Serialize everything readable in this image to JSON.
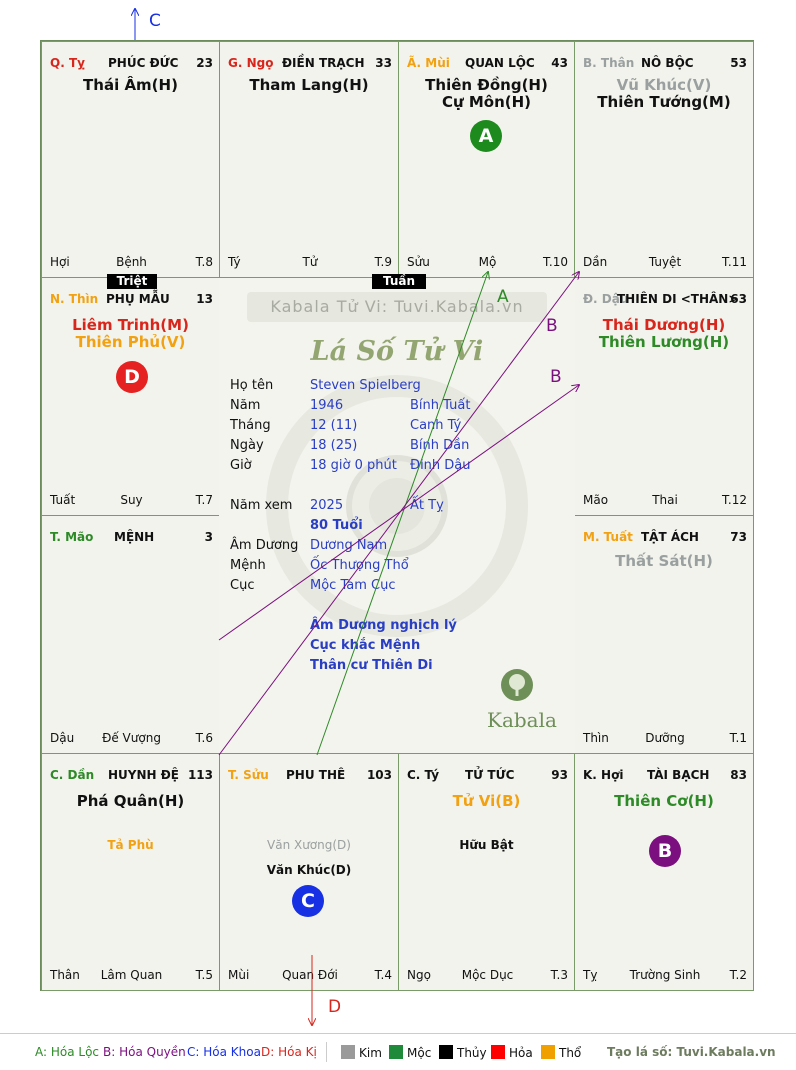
{
  "colors": {
    "green": "#2d8a27",
    "red": "#d8261d",
    "purple": "#7b0f7f",
    "blue": "#1730e3",
    "orange": "#f2a112",
    "gray": "#9aa0a0",
    "kim": "#9a9a9a",
    "moc": "#1f8a3a",
    "thuy": "#000000",
    "hoa": "#ff0000",
    "tho": "#f0a000"
  },
  "cells": {
    "ty": {
      "branch": "Q. Tỵ",
      "name": "PHÚC ĐỨC",
      "age": "23",
      "star1": "Thái Âm(H)",
      "b1": "Hợi",
      "b2": "Bệnh",
      "b3": "T.8"
    },
    "ngo": {
      "branch": "G. Ngọ",
      "name": "ĐIỀN TRẠCH",
      "age": "33",
      "star1": "Tham Lang(H)",
      "b1": "Tý",
      "b2": "Tử",
      "b3": "T.9"
    },
    "mui": {
      "branch": "Ã. Mùi",
      "name": "QUAN LỘC",
      "age": "43",
      "star1": "Thiên Đồng(H)",
      "star2": "Cự Môn(H)",
      "b1": "Sửu",
      "b2": "Mộ",
      "b3": "T.10",
      "circle": "A"
    },
    "than": {
      "branch": "B. Thân",
      "name": "NÔ BỘC",
      "age": "53",
      "star1": "Vũ Khúc(V)",
      "star2": "Thiên Tướng(M)",
      "b1": "Dần",
      "b2": "Tuyệt",
      "b3": "T.11"
    },
    "thin": {
      "branch": "N. Thìn",
      "name": "PHỤ MẪU",
      "age": "13",
      "star1": "Liêm Trinh(M)",
      "star2": "Thiên Phủ(V)",
      "b1": "Tuất",
      "b2": "Suy",
      "b3": "T.7",
      "circle": "D"
    },
    "dau": {
      "branch": "Đ. Dậu",
      "name": "THIÊN DI <THÂN>",
      "age": "63",
      "star1": "Thái Dương(H)",
      "star2": "Thiên Lương(H)",
      "b1": "Mão",
      "b2": "Thai",
      "b3": "T.12"
    },
    "mao": {
      "branch": "T. Mão",
      "name": "MỆNH",
      "age": "3",
      "b1": "Dậu",
      "b2": "Đế Vượng",
      "b3": "T.6"
    },
    "tuat": {
      "branch": "M. Tuất",
      "name": "TẬT ÁCH",
      "age": "73",
      "star1": "Thất Sát(H)",
      "b1": "Thìn",
      "b2": "Dưỡng",
      "b3": "T.1"
    },
    "dan": {
      "branch": "C. Dần",
      "name": "HUYNH ĐỆ",
      "age": "113",
      "star1": "Phá Quân(H)",
      "minor": "Tả Phù",
      "b1": "Thân",
      "b2": "Lâm Quan",
      "b3": "T.5"
    },
    "suu": {
      "branch": "T. Sửu",
      "name": "PHU THÊ",
      "age": "103",
      "minor1": "Văn Xương(D)",
      "minor2": "Văn Khúc(D)",
      "b1": "Mùi",
      "b2": "Quan Đới",
      "b3": "T.4",
      "circle": "C"
    },
    "tyy": {
      "branch": "C. Tý",
      "name": "TỬ TỨC",
      "age": "93",
      "star1": "Tử Vi(B)",
      "minor": "Hữu Bật",
      "b1": "Ngọ",
      "b2": "Mộc Dục",
      "b3": "T.3"
    },
    "hoi": {
      "branch": "K. Hợi",
      "name": "TÀI BẠCH",
      "age": "83",
      "star1": "Thiên Cơ(H)",
      "b1": "Tỵ",
      "b2": "Trường Sinh",
      "b3": "T.2",
      "circle": "B"
    }
  },
  "tags": {
    "triet": "Triệt",
    "tuan": "Tuần"
  },
  "center": {
    "watermark": "Kabala Tử Vi: Tuvi.Kabala.vn",
    "title": "Lá Số Tử Vi",
    "rows": [
      {
        "label": "Họ tên",
        "v1": "Steven Spielberg",
        "v2": ""
      },
      {
        "label": "Năm",
        "v1": "1946",
        "v2": "Bính Tuất"
      },
      {
        "label": "Tháng",
        "v1": "12  (11)",
        "v2": "Canh Tý"
      },
      {
        "label": "Ngày",
        "v1": "18  (25)",
        "v2": "Bính Dần"
      },
      {
        "label": "Giờ",
        "v1": "18 giờ 0 phút",
        "v2": "Đinh Dậu"
      }
    ],
    "year_view_label": "Năm xem",
    "year_view": "2025",
    "year_view_can": "Ất Tỵ",
    "age": "80 Tuổi",
    "rows2": [
      {
        "label": "Âm Dương",
        "v1": "Dương Nam"
      },
      {
        "label": "Mệnh",
        "v1": "Ốc Thượng Thổ"
      },
      {
        "label": "Cục",
        "v1": "Mộc Tam Cục"
      }
    ],
    "notes": [
      "Âm Dương nghịch lý",
      "Cục khắc Mệnh",
      "Thân cư Thiên Di"
    ],
    "logo": "Kabala"
  },
  "arrows": {
    "a": "A",
    "b1": "B",
    "b2": "B",
    "c": "C",
    "d": "D"
  },
  "legend": {
    "a": "A: Hóa Lộc",
    "b": "B: Hóa Quyền",
    "c": "C: Hóa Khoa",
    "d": "D: Hóa Kị",
    "kim": "Kim",
    "moc": "Mộc",
    "thuy": "Thủy",
    "hoa": "Hỏa",
    "tho": "Thổ",
    "site": "Tạo lá số: Tuvi.Kabala.vn"
  }
}
